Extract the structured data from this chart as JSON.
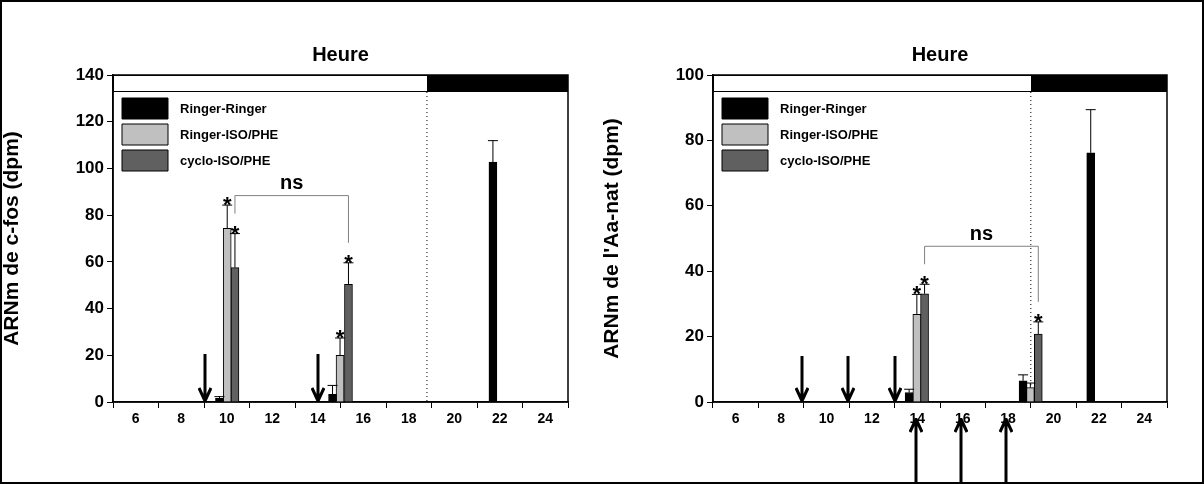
{
  "chart_data": [
    {
      "type": "bar",
      "title": "Heure",
      "ylabel": "ARNm de c-fos (dpm)",
      "xlim": [
        5,
        25
      ],
      "xticks": [
        6,
        8,
        10,
        12,
        14,
        16,
        18,
        20,
        22,
        24
      ],
      "ylim": [
        0,
        140
      ],
      "yticks": [
        0,
        20,
        40,
        60,
        80,
        100,
        120,
        140
      ],
      "legend": "top left",
      "grid": false,
      "series": [
        {
          "name": "Ringer-Ringer",
          "color": "#000000",
          "x": [
            9.68,
            14.65,
            21.7
          ],
          "values": [
            1.6,
            3.3,
            102.7
          ],
          "errors": [
            [
              1.6,
              2.3
            ],
            [
              3.3,
              7.1
            ],
            [
              102.7,
              111.9
            ]
          ]
        },
        {
          "name": "Ringer-ISO/PHE",
          "color": "#c0c0c0",
          "x": [
            10.02,
            14.98
          ],
          "values": [
            74.4,
            20
          ],
          "errors": [
            [
              74.4,
              84.3
            ],
            [
              20,
              27.4
            ]
          ]
        },
        {
          "name": "cyclo-ISO/PHE",
          "color": "#606060",
          "x": [
            10.36,
            15.35
          ],
          "values": [
            57.5,
            50.4
          ],
          "errors": [
            [
              57.5,
              72.1
            ],
            [
              50.4,
              59.6
            ]
          ]
        }
      ],
      "annotations": [
        {
          "text": "*",
          "x": 10.02,
          "y": 84.3
        },
        {
          "text": "*",
          "x": 10.36,
          "y": 72.1
        },
        {
          "text": "*",
          "x": 14.98,
          "y": 27.4
        },
        {
          "text": "*",
          "x": 15.35,
          "y": 59.6
        },
        "ns"
      ],
      "ref_lines": [
        {
          "axis": "x",
          "value": 18.8,
          "line_style": "dotted",
          "color": "#000000"
        }
      ]
    },
    {
      "type": "bar",
      "title": "Heure",
      "ylabel": "ARNm de l'Aa-nat (dpm)",
      "xlim": [
        5,
        25
      ],
      "xticks": [
        6,
        8,
        10,
        12,
        14,
        16,
        18,
        20,
        22,
        24
      ],
      "ylim": [
        0,
        100
      ],
      "yticks": [
        0,
        20,
        40,
        60,
        80,
        100
      ],
      "legend": "top left",
      "grid": false,
      "series": [
        {
          "name": "Ringer-Ringer",
          "color": "#000000",
          "x": [
            13.64,
            18.66,
            21.64
          ],
          "values": [
            2.9,
            6.5,
            76.2
          ],
          "errors": [
            [
              2.9,
              3.9
            ],
            [
              6.5,
              8.3
            ],
            [
              76.2,
              89.4
            ]
          ]
        },
        {
          "name": "Ringer-ISO/PHE",
          "color": "#c0c0c0",
          "x": [
            13.98,
            18.98
          ],
          "values": [
            26.8,
            4.4
          ],
          "errors": [
            [
              26.8,
              32.9
            ],
            [
              4.4,
              5.8
            ]
          ]
        },
        {
          "name": "cyclo-ISO/PHE",
          "color": "#606060",
          "x": [
            14.32,
            19.33
          ],
          "values": [
            33.1,
            20.8
          ],
          "errors": [
            [
              33.1,
              36
            ],
            [
              20.8,
              24.5
            ]
          ]
        }
      ],
      "annotations": [
        {
          "text": "*",
          "x": 13.98,
          "y": 32.9
        },
        {
          "text": "*",
          "x": 14.32,
          "y": 36
        },
        {
          "text": "*",
          "x": 19.33,
          "y": 24.5
        },
        "ns"
      ],
      "ref_lines": [
        {
          "axis": "x",
          "value": 19,
          "line_style": "dotted",
          "color": "#000000"
        }
      ]
    }
  ]
}
